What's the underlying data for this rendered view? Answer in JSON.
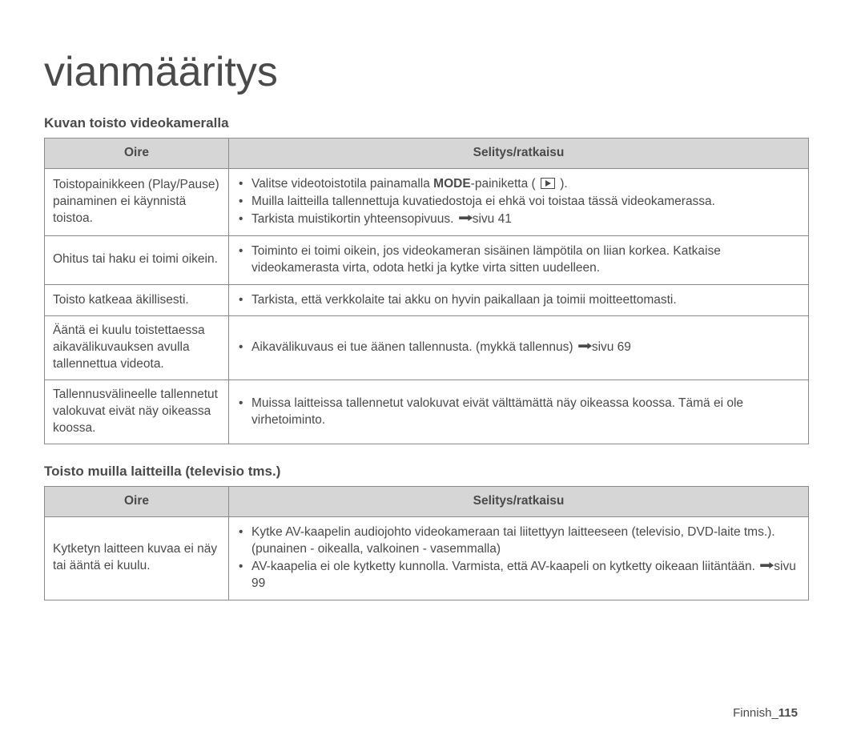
{
  "title": "vianmääritys",
  "section1": {
    "heading": "Kuvan toisto videokameralla",
    "col1": "Oire",
    "col2": "Selitys/ratkaisu",
    "rows": [
      {
        "symptom": "Toistopainikkeen (Play/Pause) painaminen ei käynnistä toistoa.",
        "items": [
          {
            "pre": "Valitse videotoistotila painamalla ",
            "bold": "MODE",
            "post": "-painiketta (",
            "icon": true,
            "post2": ")."
          },
          {
            "text": "Muilla laitteilla tallennettuja kuvatiedostoja ei ehkä voi toistaa tässä videokamerassa."
          },
          {
            "pre": "Tarkista muistikortin yhteensopivuus. ",
            "arrow": true,
            "post": "sivu 41"
          }
        ]
      },
      {
        "symptom": "Ohitus tai haku ei toimi oikein.",
        "items": [
          {
            "text": "Toiminto ei toimi oikein, jos videokameran sisäinen lämpötila on liian korkea. Katkaise videokamerasta virta, odota hetki ja kytke virta sitten uudelleen."
          }
        ]
      },
      {
        "symptom": "Toisto katkeaa äkillisesti.",
        "items": [
          {
            "text": "Tarkista, että verkkolaite tai akku on hyvin paikallaan ja toimii moitteettomasti."
          }
        ]
      },
      {
        "symptom": "Ääntä ei kuulu toistettaessa aikavälikuvauksen avulla tallennettua videota.",
        "items": [
          {
            "pre": "Aikavälikuvaus ei tue äänen tallennusta. (mykkä tallennus) ",
            "arrow": true,
            "post": "sivu 69"
          }
        ]
      },
      {
        "symptom": "Tallennusvälineelle tallennetut valokuvat eivät näy oikeassa koossa.",
        "items": [
          {
            "text": "Muissa laitteissa tallennetut valokuvat eivät välttämättä näy oikeassa koossa. Tämä ei ole virhetoiminto."
          }
        ]
      }
    ]
  },
  "section2": {
    "heading": "Toisto muilla laitteilla (televisio tms.)",
    "col1": "Oire",
    "col2": "Selitys/ratkaisu",
    "rows": [
      {
        "symptom": "Kytketyn laitteen kuvaa ei näy tai ääntä ei kuulu.",
        "items": [
          {
            "text": "Kytke AV-kaapelin audiojohto videokameraan tai liitettyyn laitteeseen (televisio, DVD-laite tms.). (punainen - oikealla, valkoinen - vasemmalla)"
          },
          {
            "pre": "AV-kaapelia ei ole kytketty kunnolla. Varmista, että AV-kaapeli on kytketty oikeaan liitäntään. ",
            "arrow": true,
            "post": "sivu 99"
          }
        ]
      }
    ]
  },
  "footer": {
    "lang": "Finnish",
    "page": "115",
    "sep": "_"
  },
  "colors": {
    "border": "#8a8a8a",
    "header_bg": "#d6d6d6",
    "text": "#4a4a4a",
    "bg": "#ffffff"
  }
}
